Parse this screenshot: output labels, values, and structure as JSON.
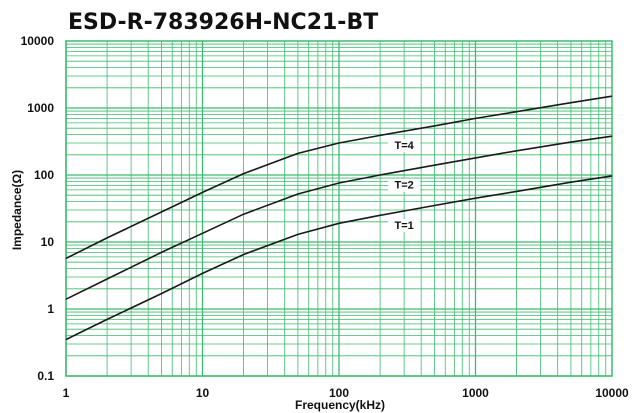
{
  "chart_data": {
    "type": "line",
    "title": "ESD-R-783926H-NC21-BT",
    "xlabel": "Frequency(kHz)",
    "ylabel": "Impedance(Ω)",
    "x_scale": "log",
    "y_scale": "log",
    "xlim": [
      1,
      10000
    ],
    "ylim": [
      0.1,
      10000
    ],
    "grid": true,
    "x_ticks": [
      "1",
      "10",
      "100",
      "1000",
      "10000"
    ],
    "y_ticks": [
      "0.1",
      "1",
      "10",
      "100",
      "1000",
      "10000"
    ],
    "colors": {
      "grid": "#3dbb6e",
      "curve": "#1a1a1a",
      "plot_background": "#ffffff"
    },
    "series": [
      {
        "name": "T=4",
        "x": [
          1,
          2,
          5,
          10,
          20,
          50,
          100,
          200,
          500,
          1000,
          2000,
          5000,
          10000
        ],
        "values": [
          5.7,
          11.5,
          28,
          55,
          105,
          210,
          300,
          390,
          540,
          700,
          880,
          1200,
          1500
        ]
      },
      {
        "name": "T=2",
        "x": [
          1,
          2,
          5,
          10,
          20,
          50,
          100,
          200,
          500,
          1000,
          2000,
          5000,
          10000
        ],
        "values": [
          1.4,
          2.8,
          7,
          13.5,
          26,
          52,
          76,
          100,
          140,
          180,
          230,
          310,
          380
        ]
      },
      {
        "name": "T=1",
        "x": [
          1,
          2,
          5,
          10,
          20,
          50,
          100,
          200,
          500,
          1000,
          2000,
          5000,
          10000
        ],
        "values": [
          0.35,
          0.7,
          1.7,
          3.4,
          6.5,
          13,
          19,
          25,
          35,
          45,
          57,
          78,
          97
        ]
      }
    ]
  }
}
